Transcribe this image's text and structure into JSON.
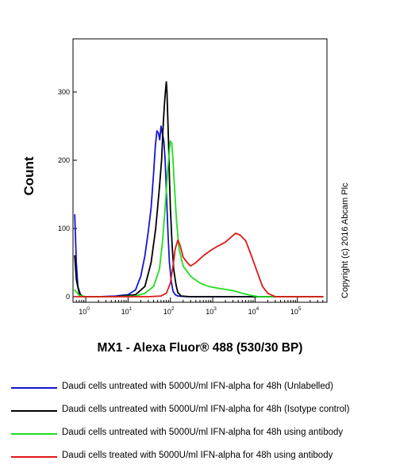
{
  "chart_data": {
    "type": "line",
    "title": "",
    "xlabel": "MX1 - Alexa Fluor® 488 (530/30 BP)",
    "ylabel": "Count",
    "x_scale": "log",
    "xlim": [
      0.5,
      500000
    ],
    "ylim": [
      0,
      360
    ],
    "x_ticks": [
      {
        "base": "10",
        "exp": "0",
        "value": 1
      },
      {
        "base": "10",
        "exp": "1",
        "value": 10
      },
      {
        "base": "10",
        "exp": "2",
        "value": 100
      },
      {
        "base": "10",
        "exp": "3",
        "value": 1000
      },
      {
        "base": "10",
        "exp": "4",
        "value": 10000
      },
      {
        "base": "10",
        "exp": "5",
        "value": 100000
      }
    ],
    "y_ticks": [
      0,
      100,
      200,
      300
    ],
    "grid": false,
    "legend_position": "bottom",
    "series": [
      {
        "name": "Daudi cells untreated with 5000U/ml IFN-alpha  for 48h (Unlabelled)",
        "color": "#1414d2",
        "points": [
          [
            0.55,
            120
          ],
          [
            0.6,
            50
          ],
          [
            0.65,
            15
          ],
          [
            0.75,
            3
          ],
          [
            0.9,
            0
          ],
          [
            2,
            0
          ],
          [
            5,
            1
          ],
          [
            10,
            3
          ],
          [
            15,
            10
          ],
          [
            20,
            30
          ],
          [
            25,
            60
          ],
          [
            30,
            95
          ],
          [
            35,
            130
          ],
          [
            40,
            180
          ],
          [
            44,
            220
          ],
          [
            48,
            243
          ],
          [
            52,
            240
          ],
          [
            56,
            230
          ],
          [
            60,
            250
          ],
          [
            64,
            240
          ],
          [
            70,
            228
          ],
          [
            75,
            200
          ],
          [
            82,
            140
          ],
          [
            88,
            90
          ],
          [
            95,
            50
          ],
          [
            105,
            22
          ],
          [
            115,
            8
          ],
          [
            130,
            3
          ],
          [
            150,
            1
          ],
          [
            250,
            0
          ],
          [
            1000,
            0
          ],
          [
            10000,
            0
          ],
          [
            100000,
            0
          ],
          [
            400000,
            0
          ]
        ]
      },
      {
        "name": "Daudi cells untreated with 5000U/ml IFN-alpha  for 48h (Isotype control)",
        "color": "#000000",
        "points": [
          [
            0.55,
            60
          ],
          [
            0.6,
            25
          ],
          [
            0.7,
            5
          ],
          [
            0.85,
            0
          ],
          [
            5,
            0
          ],
          [
            15,
            3
          ],
          [
            25,
            15
          ],
          [
            35,
            50
          ],
          [
            45,
            100
          ],
          [
            55,
            160
          ],
          [
            62,
            200
          ],
          [
            68,
            255
          ],
          [
            72,
            280
          ],
          [
            76,
            300
          ],
          [
            80,
            315
          ],
          [
            83,
            300
          ],
          [
            86,
            270
          ],
          [
            90,
            230
          ],
          [
            95,
            175
          ],
          [
            100,
            130
          ],
          [
            110,
            75
          ],
          [
            120,
            40
          ],
          [
            135,
            18
          ],
          [
            150,
            6
          ],
          [
            180,
            1
          ],
          [
            300,
            0
          ],
          [
            1000,
            0
          ],
          [
            10000,
            0
          ],
          [
            100000,
            0
          ],
          [
            400000,
            0
          ]
        ]
      },
      {
        "name": "Daudi cells untreated with 5000U/ml IFN-alpha  for 48h using antibody",
        "color": "#22dd22",
        "points": [
          [
            0.55,
            10
          ],
          [
            0.7,
            2
          ],
          [
            1,
            0
          ],
          [
            5,
            0
          ],
          [
            15,
            1
          ],
          [
            25,
            5
          ],
          [
            40,
            15
          ],
          [
            55,
            40
          ],
          [
            65,
            80
          ],
          [
            75,
            130
          ],
          [
            85,
            180
          ],
          [
            95,
            215
          ],
          [
            100,
            228
          ],
          [
            108,
            225
          ],
          [
            115,
            200
          ],
          [
            125,
            160
          ],
          [
            140,
            110
          ],
          [
            160,
            70
          ],
          [
            200,
            45
          ],
          [
            300,
            30
          ],
          [
            500,
            20
          ],
          [
            800,
            15
          ],
          [
            1500,
            12
          ],
          [
            3000,
            9
          ],
          [
            5000,
            5
          ],
          [
            8000,
            2
          ],
          [
            12000,
            0
          ],
          [
            100000,
            0
          ],
          [
            400000,
            0
          ]
        ]
      },
      {
        "name": "Daudi cells treated with 5000U/ml IFN-alpha  for 48h using antibody",
        "color": "#e01818",
        "points": [
          [
            0.55,
            0
          ],
          [
            30,
            0
          ],
          [
            60,
            1
          ],
          [
            80,
            5
          ],
          [
            100,
            20
          ],
          [
            115,
            45
          ],
          [
            130,
            70
          ],
          [
            150,
            83
          ],
          [
            170,
            75
          ],
          [
            200,
            58
          ],
          [
            250,
            50
          ],
          [
            300,
            45
          ],
          [
            400,
            50
          ],
          [
            600,
            60
          ],
          [
            900,
            68
          ],
          [
            1300,
            74
          ],
          [
            2000,
            80
          ],
          [
            2800,
            88
          ],
          [
            3500,
            93
          ],
          [
            4500,
            90
          ],
          [
            6000,
            82
          ],
          [
            8000,
            62
          ],
          [
            11000,
            38
          ],
          [
            15000,
            15
          ],
          [
            20000,
            5
          ],
          [
            30000,
            0
          ],
          [
            100000,
            0
          ],
          [
            400000,
            0
          ]
        ]
      }
    ],
    "annotation": "Copyright (c) 2016 Abcam Plc"
  },
  "legend": [
    {
      "label": "Daudi cells untreated with 5000U/ml IFN-alpha  for 48h (Unlabelled)",
      "color": "#1414d2"
    },
    {
      "label": "Daudi cells untreated with 5000U/ml IFN-alpha  for 48h (Isotype control)",
      "color": "#000000"
    },
    {
      "label": "Daudi cells untreated with 5000U/ml IFN-alpha  for 48h using antibody",
      "color": "#22dd22"
    },
    {
      "label": "Daudi cells treated with 5000U/ml IFN-alpha  for 48h using antibody",
      "color": "#e01818"
    }
  ]
}
